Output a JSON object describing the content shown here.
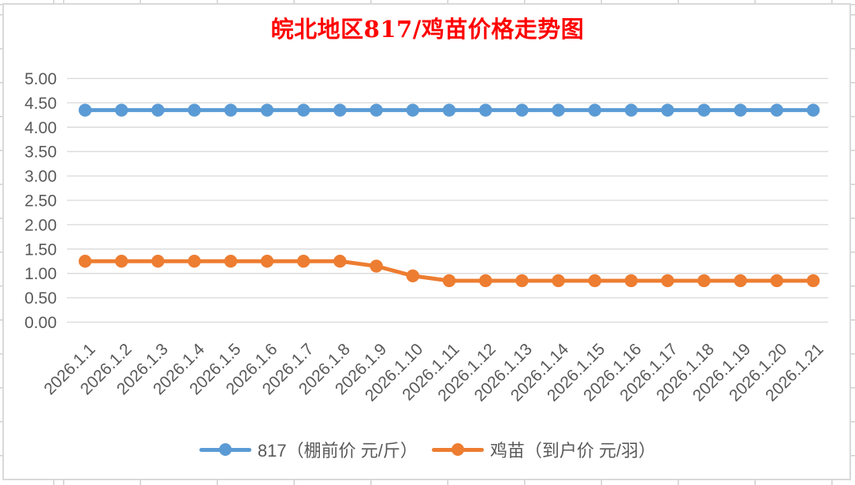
{
  "chart_data": {
    "type": "line",
    "title": "皖北地区817/鸡苗价格走势图",
    "title_color": "#FF0000",
    "categories": [
      "2026.1.1",
      "2026.1.2",
      "2026.1.3",
      "2026.1.4",
      "2026.1.5",
      "2026.1.6",
      "2026.1.7",
      "2026.1.8",
      "2026.1.9",
      "2026.1.10",
      "2026.1.11",
      "2026.1.12",
      "2026.1.13",
      "2026.1.14",
      "2026.1.15",
      "2026.1.16",
      "2026.1.17",
      "2026.1.18",
      "2026.1.19",
      "2026.1.20",
      "2026.1.21"
    ],
    "series": [
      {
        "name": "817（棚前价 元/斤）",
        "color": "#5B9BD5",
        "values": [
          4.35,
          4.35,
          4.35,
          4.35,
          4.35,
          4.35,
          4.35,
          4.35,
          4.35,
          4.35,
          4.35,
          4.35,
          4.35,
          4.35,
          4.35,
          4.35,
          4.35,
          4.35,
          4.35,
          4.35,
          4.35
        ]
      },
      {
        "name": "鸡苗（到户价 元/羽）",
        "color": "#ED7D31",
        "values": [
          1.25,
          1.25,
          1.25,
          1.25,
          1.25,
          1.25,
          1.25,
          1.25,
          1.15,
          0.95,
          0.85,
          0.85,
          0.85,
          0.85,
          0.85,
          0.85,
          0.85,
          0.85,
          0.85,
          0.85,
          0.85
        ]
      }
    ],
    "ylim": [
      0,
      5
    ],
    "ytick_step": 0.5,
    "ytick_labels": [
      "0.00",
      "0.50",
      "1.00",
      "1.50",
      "2.00",
      "2.50",
      "3.00",
      "3.50",
      "4.00",
      "4.50",
      "5.00"
    ],
    "grid": true,
    "gridline_color": "#D9D9D9",
    "axis_label_color": "#595959",
    "legend_position": "bottom",
    "xlabel": "",
    "ylabel": ""
  }
}
